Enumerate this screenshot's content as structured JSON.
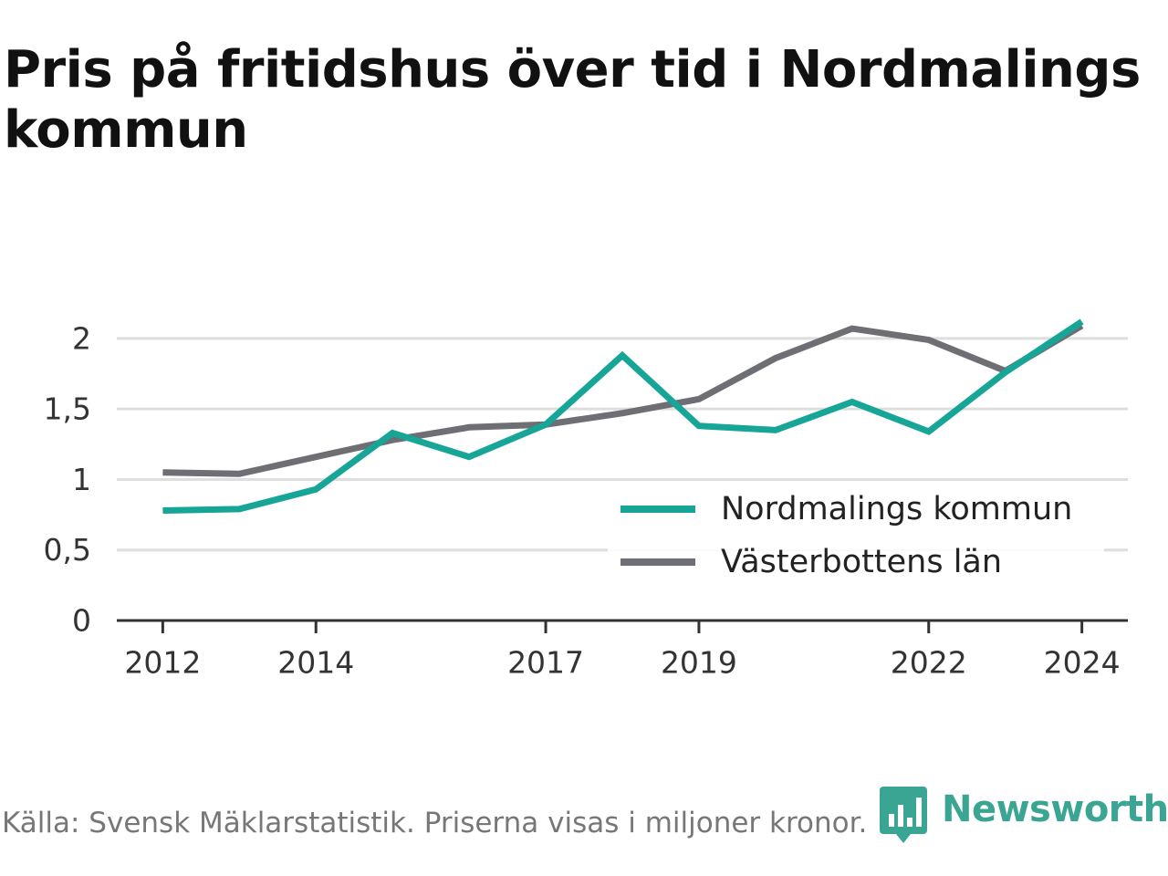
{
  "title": "Pris på fritidshus över tid i Nordmalings kommun",
  "footer": {
    "source": "Källa: Svensk Mäklarstatistik. Priserna visas i miljoner kronor."
  },
  "brand": {
    "name": "Newsworthy",
    "logo_icon": "bar-chart-speech-bubble-icon",
    "color": "#3aa593"
  },
  "chart_data": {
    "type": "line",
    "title": "Pris på fritidshus över tid i Nordmalings kommun",
    "xlabel": "",
    "ylabel": "",
    "x": [
      2012,
      2013,
      2014,
      2015,
      2016,
      2017,
      2018,
      2019,
      2020,
      2021,
      2022,
      2023,
      2024
    ],
    "x_ticks": [
      "2012",
      "2014",
      "2017",
      "2019",
      "2022",
      "2024"
    ],
    "y_ticks": [
      "0",
      "0,5",
      "1",
      "1,5",
      "2"
    ],
    "ylim": [
      0,
      2.2
    ],
    "grid": true,
    "legend_position": "lower-right",
    "series": [
      {
        "name": "Nordmalings kommun",
        "color": "#16a597",
        "values": [
          0.78,
          0.79,
          0.93,
          1.33,
          1.16,
          1.39,
          1.88,
          1.38,
          1.35,
          1.55,
          1.34,
          1.76,
          2.12
        ]
      },
      {
        "name": "Västerbottens län",
        "color": "#6e6e75",
        "values": [
          1.05,
          1.04,
          1.16,
          1.28,
          1.37,
          1.39,
          1.47,
          1.57,
          1.86,
          2.07,
          1.99,
          1.77,
          2.09
        ]
      }
    ]
  }
}
